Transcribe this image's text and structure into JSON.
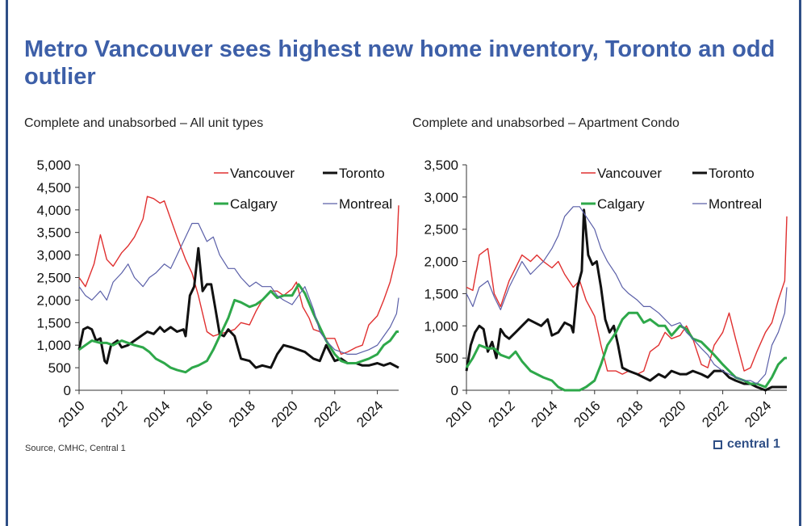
{
  "title": "Metro Vancouver sees highest new home inventory, Toronto an odd outlier",
  "source": "Source, CMHC, Central 1",
  "logo_text": "central 1",
  "colors": {
    "title": "#3d5fa8",
    "Vancouver": "#e03030",
    "Toronto": "#111111",
    "Calgary": "#2ea84a",
    "Montreal": "#5a5fa8"
  },
  "chart_data": [
    {
      "type": "line",
      "title": "Complete and unabsorbed – All unit types",
      "xlim": [
        2010,
        2025
      ],
      "ylim": [
        0,
        5000
      ],
      "x_ticks": [
        2010,
        2012,
        2014,
        2016,
        2018,
        2020,
        2022,
        2024
      ],
      "y_ticks": [
        0,
        500,
        1000,
        1500,
        2000,
        2500,
        3000,
        3500,
        4000,
        4500,
        5000
      ],
      "y_tick_labels": [
        "0",
        "500",
        "1,000",
        "1,500",
        "2,000",
        "2,500",
        "3,000",
        "3,500",
        "4,000",
        "4,500",
        "5,000"
      ],
      "legend": [
        "Vancouver",
        "Toronto",
        "Calgary",
        "Montreal"
      ],
      "series": [
        {
          "name": "Vancouver",
          "x": [
            2010.0,
            2010.3,
            2010.7,
            2011.0,
            2011.3,
            2011.6,
            2012.0,
            2012.3,
            2012.6,
            2013.0,
            2013.2,
            2013.5,
            2013.8,
            2014.0,
            2014.3,
            2014.6,
            2015.0,
            2015.3,
            2015.6,
            2016.0,
            2016.3,
            2016.6,
            2017.0,
            2017.3,
            2017.6,
            2018.0,
            2018.3,
            2018.6,
            2019.0,
            2019.3,
            2019.6,
            2020.0,
            2020.2,
            2020.5,
            2020.8,
            2021.0,
            2021.3,
            2021.6,
            2022.0,
            2022.3,
            2022.6,
            2023.0,
            2023.3,
            2023.6,
            2024.0,
            2024.3,
            2024.6,
            2024.9,
            2025.0
          ],
          "values": [
            2500,
            2300,
            2800,
            3450,
            2900,
            2750,
            3050,
            3200,
            3400,
            3800,
            4300,
            4250,
            4150,
            4200,
            3800,
            3400,
            2900,
            2600,
            2100,
            1300,
            1200,
            1250,
            1300,
            1350,
            1500,
            1450,
            1750,
            2000,
            2200,
            2200,
            2100,
            2250,
            2400,
            1850,
            1600,
            1350,
            1300,
            1150,
            1150,
            800,
            850,
            950,
            1000,
            1450,
            1650,
            2000,
            2400,
            3000,
            4100
          ]
        },
        {
          "name": "Toronto",
          "x": [
            2010.0,
            2010.2,
            2010.4,
            2010.6,
            2010.8,
            2011.0,
            2011.2,
            2011.3,
            2011.5,
            2011.8,
            2012.0,
            2012.3,
            2012.6,
            2012.9,
            2013.2,
            2013.5,
            2013.8,
            2014.0,
            2014.3,
            2014.6,
            2014.9,
            2015.0,
            2015.2,
            2015.4,
            2015.6,
            2015.8,
            2016.0,
            2016.2,
            2016.4,
            2016.6,
            2016.8,
            2017.0,
            2017.3,
            2017.6,
            2018.0,
            2018.3,
            2018.6,
            2019.0,
            2019.3,
            2019.6,
            2020.0,
            2020.3,
            2020.6,
            2021.0,
            2021.3,
            2021.6,
            2022.0,
            2022.3,
            2022.6,
            2023.0,
            2023.3,
            2023.6,
            2024.0,
            2024.3,
            2024.6,
            2025.0
          ],
          "values": [
            900,
            1350,
            1400,
            1350,
            1100,
            1150,
            650,
            600,
            1000,
            1100,
            950,
            1000,
            1100,
            1200,
            1300,
            1250,
            1400,
            1300,
            1400,
            1300,
            1350,
            1200,
            2100,
            2300,
            3150,
            2200,
            2350,
            2350,
            1800,
            1250,
            1200,
            1350,
            1200,
            700,
            650,
            500,
            550,
            500,
            800,
            1000,
            950,
            900,
            850,
            700,
            650,
            1000,
            650,
            700,
            600,
            600,
            550,
            550,
            600,
            550,
            600,
            500
          ]
        },
        {
          "name": "Calgary",
          "x": [
            2010.0,
            2010.3,
            2010.6,
            2011.0,
            2011.3,
            2011.6,
            2012.0,
            2012.3,
            2012.6,
            2013.0,
            2013.3,
            2013.6,
            2014.0,
            2014.3,
            2014.6,
            2015.0,
            2015.3,
            2015.6,
            2016.0,
            2016.3,
            2016.6,
            2017.0,
            2017.3,
            2017.6,
            2018.0,
            2018.3,
            2018.6,
            2019.0,
            2019.3,
            2019.6,
            2020.0,
            2020.3,
            2020.6,
            2021.0,
            2021.3,
            2021.6,
            2022.0,
            2022.3,
            2022.6,
            2023.0,
            2023.3,
            2023.6,
            2024.0,
            2024.3,
            2024.6,
            2024.9,
            2025.0
          ],
          "values": [
            900,
            1000,
            1100,
            1050,
            1050,
            1000,
            1100,
            1050,
            1000,
            950,
            850,
            700,
            600,
            500,
            450,
            400,
            500,
            550,
            650,
            900,
            1200,
            1600,
            2000,
            1950,
            1850,
            1900,
            2000,
            2200,
            2050,
            2100,
            2100,
            2350,
            2150,
            1700,
            1400,
            1100,
            800,
            650,
            600,
            600,
            650,
            700,
            800,
            1000,
            1100,
            1300,
            1300
          ]
        },
        {
          "name": "Montreal",
          "x": [
            2010.0,
            2010.3,
            2010.6,
            2011.0,
            2011.3,
            2011.6,
            2012.0,
            2012.3,
            2012.6,
            2013.0,
            2013.3,
            2013.6,
            2014.0,
            2014.3,
            2014.6,
            2015.0,
            2015.3,
            2015.6,
            2016.0,
            2016.3,
            2016.6,
            2017.0,
            2017.3,
            2017.6,
            2018.0,
            2018.3,
            2018.6,
            2019.0,
            2019.3,
            2019.6,
            2020.0,
            2020.3,
            2020.6,
            2021.0,
            2021.3,
            2021.6,
            2022.0,
            2022.3,
            2022.6,
            2023.0,
            2023.3,
            2023.6,
            2024.0,
            2024.3,
            2024.6,
            2024.9,
            2025.0
          ],
          "values": [
            2300,
            2100,
            2000,
            2200,
            2000,
            2400,
            2600,
            2800,
            2500,
            2300,
            2500,
            2600,
            2800,
            2700,
            3000,
            3400,
            3700,
            3700,
            3300,
            3400,
            3000,
            2700,
            2700,
            2500,
            2300,
            2400,
            2300,
            2300,
            2100,
            2000,
            1900,
            2100,
            2300,
            1800,
            1300,
            1100,
            900,
            850,
            800,
            800,
            850,
            900,
            1000,
            1200,
            1400,
            1700,
            2050
          ]
        }
      ]
    },
    {
      "type": "line",
      "title": "Complete and unabsorbed – Apartment Condo",
      "xlim": [
        2010,
        2025
      ],
      "ylim": [
        0,
        3500
      ],
      "x_ticks": [
        2010,
        2012,
        2014,
        2016,
        2018,
        2020,
        2022,
        2024
      ],
      "y_ticks": [
        0,
        500,
        1000,
        1500,
        2000,
        2500,
        3000,
        3500
      ],
      "y_tick_labels": [
        "0",
        "500",
        "1,000",
        "1,500",
        "2,000",
        "2,500",
        "3,000",
        "3,500"
      ],
      "legend": [
        "Vancouver",
        "Toronto",
        "Calgary",
        "Montreal"
      ],
      "series": [
        {
          "name": "Vancouver",
          "x": [
            2010.0,
            2010.3,
            2010.6,
            2011.0,
            2011.3,
            2011.6,
            2012.0,
            2012.3,
            2012.6,
            2013.0,
            2013.3,
            2013.6,
            2014.0,
            2014.3,
            2014.6,
            2015.0,
            2015.3,
            2015.6,
            2016.0,
            2016.3,
            2016.6,
            2017.0,
            2017.3,
            2017.6,
            2018.0,
            2018.3,
            2018.6,
            2019.0,
            2019.3,
            2019.6,
            2020.0,
            2020.3,
            2020.6,
            2021.0,
            2021.3,
            2021.6,
            2022.0,
            2022.3,
            2022.6,
            2023.0,
            2023.3,
            2023.6,
            2024.0,
            2024.3,
            2024.6,
            2024.9,
            2025.0
          ],
          "values": [
            1600,
            1550,
            2100,
            2200,
            1500,
            1300,
            1700,
            1900,
            2100,
            2000,
            2100,
            2000,
            1900,
            2000,
            1800,
            1600,
            1700,
            1400,
            1150,
            700,
            300,
            300,
            250,
            300,
            250,
            300,
            600,
            700,
            900,
            800,
            850,
            1000,
            800,
            400,
            350,
            700,
            900,
            1200,
            800,
            300,
            350,
            600,
            900,
            1050,
            1400,
            1700,
            2700
          ]
        },
        {
          "name": "Toronto",
          "x": [
            2010.0,
            2010.2,
            2010.4,
            2010.6,
            2010.8,
            2011.0,
            2011.2,
            2011.4,
            2011.6,
            2011.8,
            2012.0,
            2012.3,
            2012.6,
            2012.9,
            2013.2,
            2013.5,
            2013.8,
            2014.0,
            2014.3,
            2014.6,
            2014.9,
            2015.0,
            2015.2,
            2015.4,
            2015.5,
            2015.7,
            2015.9,
            2016.1,
            2016.3,
            2016.5,
            2016.7,
            2016.9,
            2017.1,
            2017.3,
            2017.6,
            2018.0,
            2018.3,
            2018.6,
            2019.0,
            2019.3,
            2019.6,
            2020.0,
            2020.3,
            2020.6,
            2021.0,
            2021.3,
            2021.6,
            2022.0,
            2022.3,
            2022.6,
            2023.0,
            2023.3,
            2023.6,
            2024.0,
            2024.3,
            2024.6,
            2025.0
          ],
          "values": [
            300,
            700,
            900,
            1000,
            950,
            600,
            750,
            500,
            950,
            850,
            800,
            900,
            1000,
            1100,
            1050,
            1000,
            1100,
            850,
            900,
            1050,
            1000,
            900,
            1600,
            1850,
            2800,
            2100,
            1950,
            2000,
            1600,
            1100,
            900,
            1000,
            700,
            350,
            300,
            250,
            200,
            150,
            250,
            200,
            300,
            250,
            250,
            300,
            250,
            200,
            300,
            300,
            200,
            150,
            100,
            100,
            50,
            0,
            50,
            50,
            50
          ]
        },
        {
          "name": "Calgary",
          "x": [
            2010.0,
            2010.3,
            2010.6,
            2011.0,
            2011.3,
            2011.6,
            2012.0,
            2012.3,
            2012.6,
            2013.0,
            2013.3,
            2013.6,
            2014.0,
            2014.3,
            2014.6,
            2015.0,
            2015.3,
            2015.6,
            2016.0,
            2016.3,
            2016.6,
            2017.0,
            2017.3,
            2017.6,
            2018.0,
            2018.3,
            2018.6,
            2019.0,
            2019.3,
            2019.6,
            2020.0,
            2020.3,
            2020.6,
            2021.0,
            2021.3,
            2021.6,
            2022.0,
            2022.3,
            2022.6,
            2023.0,
            2023.3,
            2023.6,
            2024.0,
            2024.3,
            2024.6,
            2024.9,
            2025.0
          ],
          "values": [
            350,
            500,
            700,
            650,
            650,
            550,
            500,
            600,
            450,
            300,
            250,
            200,
            150,
            50,
            0,
            0,
            0,
            50,
            150,
            400,
            700,
            900,
            1100,
            1200,
            1200,
            1050,
            1100,
            1000,
            1000,
            850,
            1000,
            950,
            800,
            750,
            650,
            550,
            400,
            300,
            200,
            150,
            100,
            100,
            50,
            200,
            400,
            500,
            500
          ]
        },
        {
          "name": "Montreal",
          "x": [
            2010.0,
            2010.3,
            2010.6,
            2011.0,
            2011.3,
            2011.6,
            2012.0,
            2012.3,
            2012.6,
            2013.0,
            2013.3,
            2013.6,
            2014.0,
            2014.3,
            2014.6,
            2015.0,
            2015.3,
            2015.6,
            2016.0,
            2016.3,
            2016.6,
            2017.0,
            2017.3,
            2017.6,
            2018.0,
            2018.3,
            2018.6,
            2019.0,
            2019.3,
            2019.6,
            2020.0,
            2020.3,
            2020.6,
            2021.0,
            2021.3,
            2021.6,
            2022.0,
            2022.3,
            2022.6,
            2023.0,
            2023.3,
            2023.6,
            2024.0,
            2024.3,
            2024.6,
            2024.9,
            2025.0
          ],
          "values": [
            1500,
            1300,
            1600,
            1700,
            1450,
            1250,
            1600,
            1800,
            2000,
            1800,
            1900,
            2000,
            2200,
            2400,
            2700,
            2850,
            2850,
            2700,
            2500,
            2200,
            2000,
            1800,
            1600,
            1500,
            1400,
            1300,
            1300,
            1200,
            1100,
            1000,
            1050,
            900,
            800,
            650,
            550,
            400,
            300,
            250,
            200,
            150,
            150,
            100,
            250,
            700,
            900,
            1200,
            1600
          ]
        }
      ]
    }
  ],
  "charts_text": [
    {
      "subtitle": "Complete and unabsorbed – All unit types"
    },
    {
      "subtitle": "Complete and unabsorbed – Apartment Condo"
    }
  ]
}
